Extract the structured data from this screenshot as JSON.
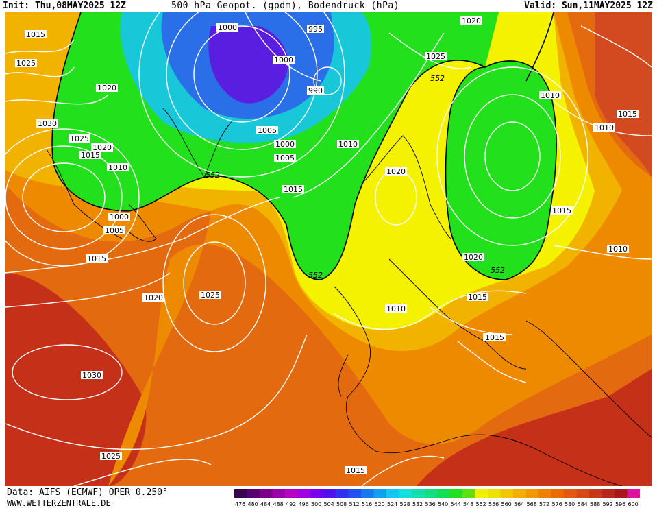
{
  "header": {
    "init": "Init: Thu,08MAY2025 12Z",
    "title": "500 hPa Geopot. (gpdm), Bodendruck (hPa)",
    "valid": "Valid: Sun,11MAY2025 12Z"
  },
  "footer": {
    "data_source": "Data: AIFS (ECMWF) OPER 0.250°",
    "website": "WWW.WETTERZENTRALE.DE"
  },
  "colors": {
    "green": "#22e01c",
    "yellow": "#f5f200",
    "orange_light": "#f2b200",
    "orange": "#ee8a00",
    "orange_dark": "#e46a10",
    "red": "#d44a20",
    "dark_red": "#b8201c",
    "cyan": "#18c8d8",
    "blue": "#2a6ee8",
    "violet": "#5a1ee0",
    "isobar": "#ffffff",
    "contour": "#000000"
  },
  "scale": {
    "values": [
      "476",
      "480",
      "484",
      "488",
      "492",
      "496",
      "500",
      "504",
      "508",
      "512",
      "516",
      "520",
      "524",
      "528",
      "532",
      "536",
      "540",
      "544",
      "548",
      "552",
      "556",
      "560",
      "564",
      "568",
      "572",
      "576",
      "580",
      "584",
      "588",
      "592",
      "596",
      "600"
    ],
    "colors": [
      "#3a0050",
      "#5a006e",
      "#7a008a",
      "#9a00a8",
      "#b800c4",
      "#a000e0",
      "#7800f0",
      "#5010f0",
      "#3030f0",
      "#2050f0",
      "#1878f0",
      "#10a0f0",
      "#10c8f0",
      "#10e0e0",
      "#10e0b0",
      "#10e080",
      "#10e050",
      "#20e020",
      "#60e010",
      "#f0f000",
      "#f0e000",
      "#f0c800",
      "#f0b000",
      "#f09800",
      "#f08000",
      "#ec6a00",
      "#e45810",
      "#d84818",
      "#c83818",
      "#b82818",
      "#a81818",
      "#e010a0"
    ]
  },
  "isobar_labels": [
    {
      "text": "1015"
    },
    {
      "text": "1025"
    },
    {
      "text": "1020"
    },
    {
      "text": "1030"
    },
    {
      "text": "1025"
    },
    {
      "text": "1020"
    },
    {
      "text": "1015"
    },
    {
      "text": "1010"
    },
    {
      "text": "1000"
    },
    {
      "text": "1005"
    },
    {
      "text": "1015"
    },
    {
      "text": "1020"
    },
    {
      "text": "1025"
    },
    {
      "text": "1030"
    },
    {
      "text": "1025"
    },
    {
      "text": "1015"
    },
    {
      "text": "1000"
    },
    {
      "text": "995"
    },
    {
      "text": "1000"
    },
    {
      "text": "990"
    },
    {
      "text": "1005"
    },
    {
      "text": "1000"
    },
    {
      "text": "1005"
    },
    {
      "text": "1010"
    },
    {
      "text": "1015"
    },
    {
      "text": "1020"
    },
    {
      "text": "1025"
    },
    {
      "text": "1020"
    },
    {
      "text": "1010"
    },
    {
      "text": "1010"
    },
    {
      "text": "1015"
    },
    {
      "text": "1015"
    },
    {
      "text": "1010"
    },
    {
      "text": "1020"
    },
    {
      "text": "1015"
    },
    {
      "text": "1010"
    },
    {
      "text": "1015"
    },
    {
      "text": "1015"
    }
  ],
  "contour_labels": [
    {
      "text": "552"
    },
    {
      "text": "552"
    },
    {
      "text": "552"
    },
    {
      "text": "552"
    }
  ]
}
